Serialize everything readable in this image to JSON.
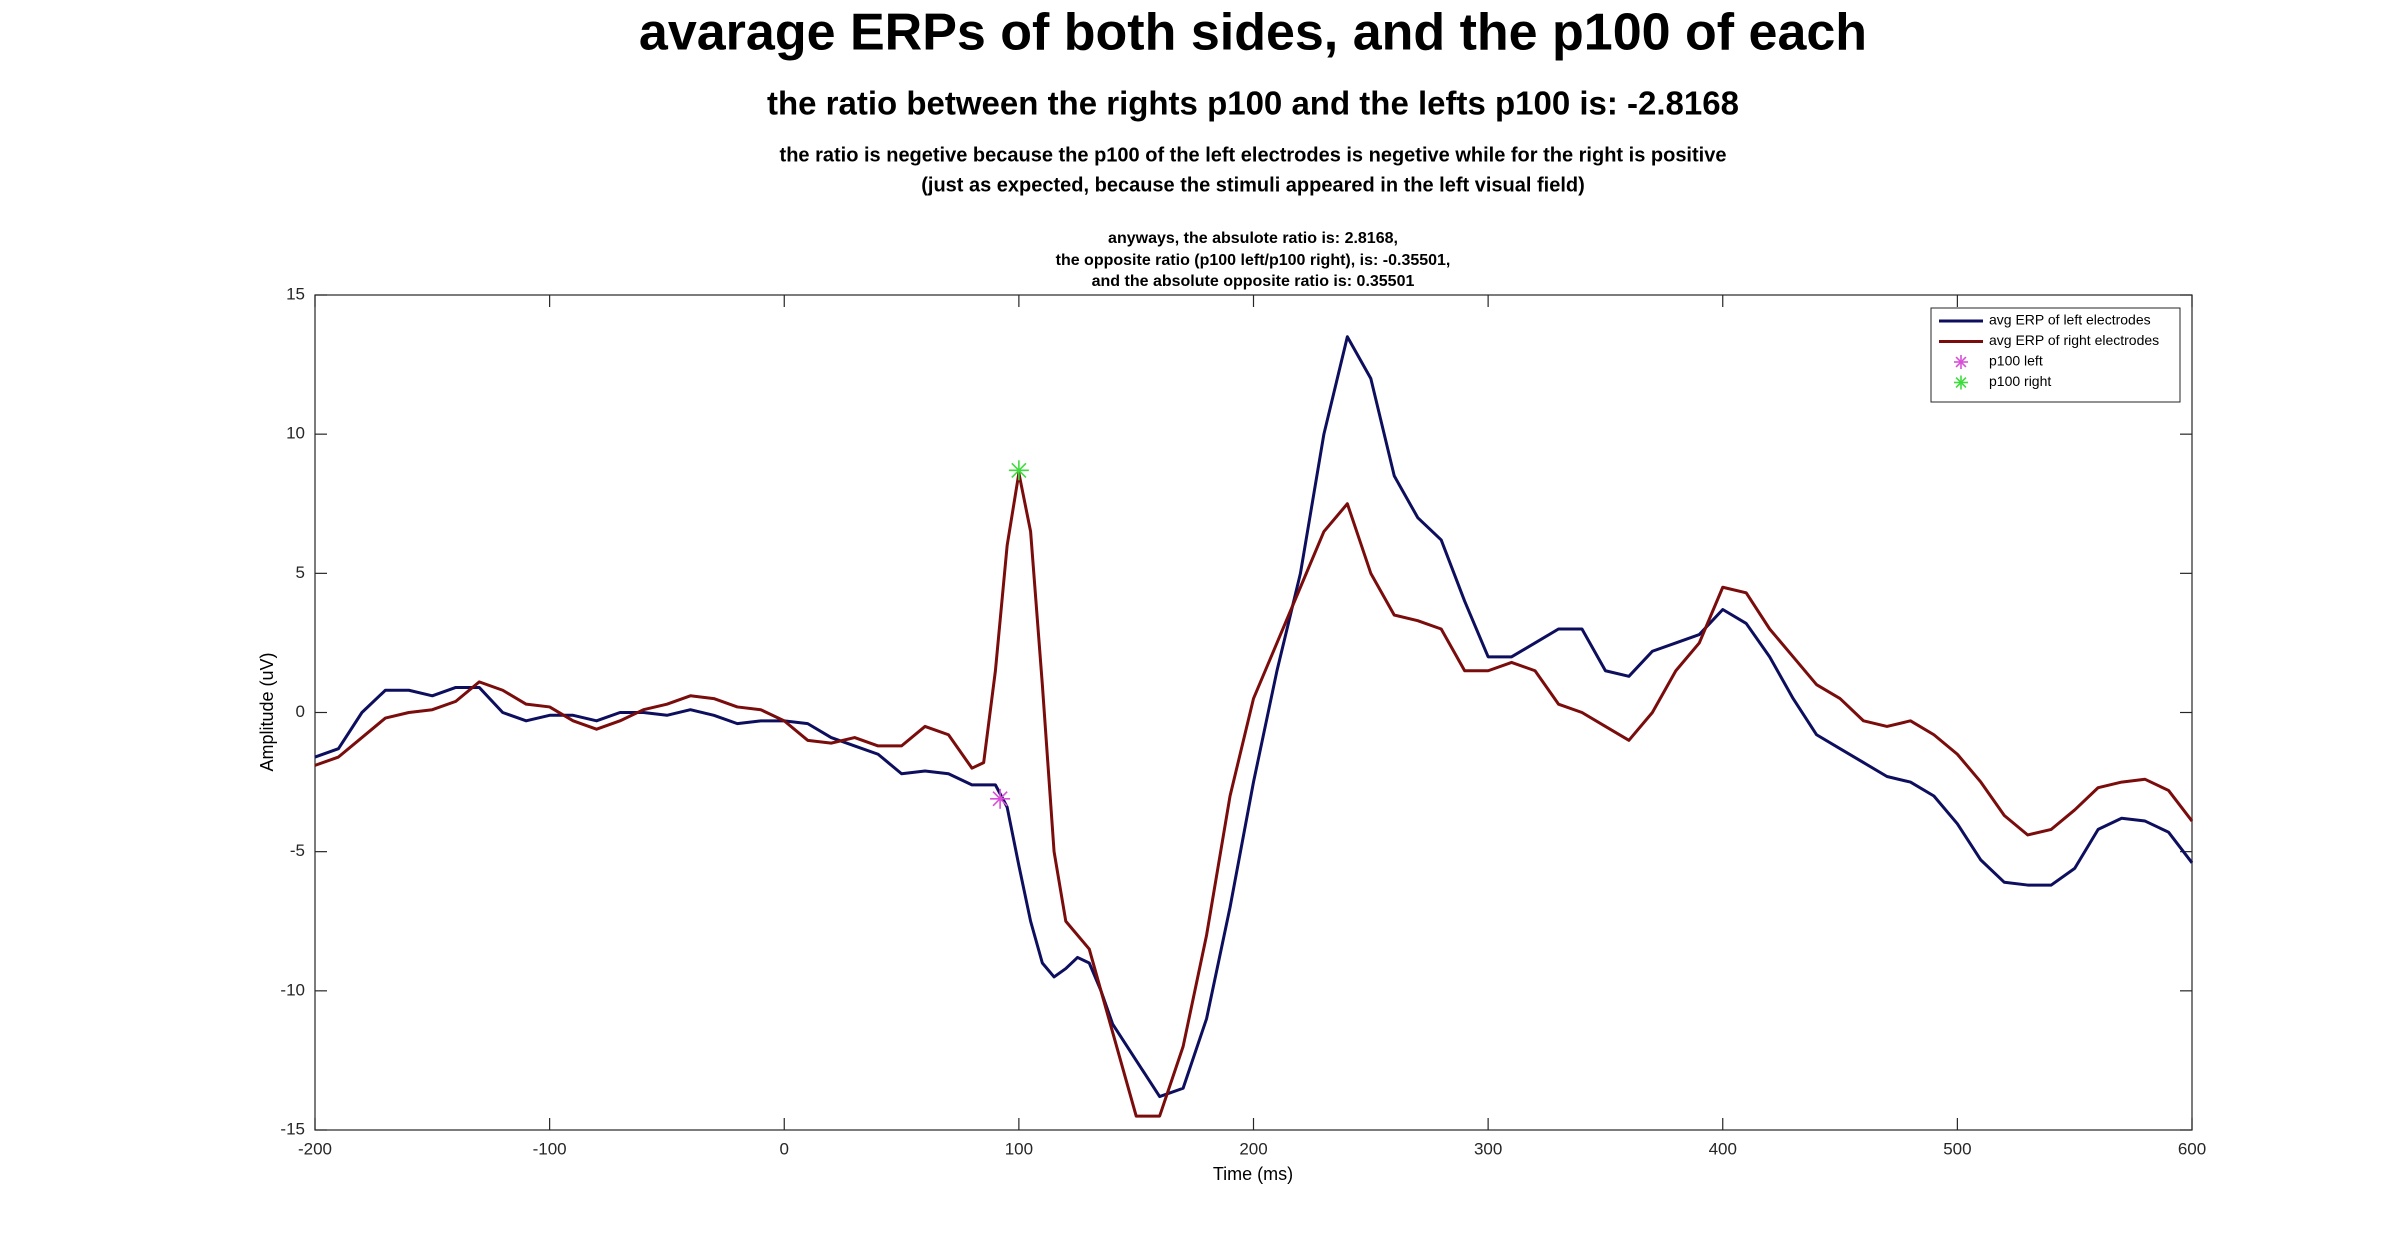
{
  "chart_data": {
    "type": "line",
    "title": "avarage ERPs of both sides, and the p100 of each",
    "subtitle": "the ratio between the rights p100 and the lefts p100 is: -2.8168",
    "notes": [
      "the ratio is negetive because the p100 of the left electrodes is negetive while for the right is positive",
      "(just as expected, because the stimuli appeared in the left visual field)"
    ],
    "annotation": [
      "anyways, the absulote ratio is: 2.8168,",
      "the opposite ratio (p100 left/p100 right), is: -0.35501,",
      "and the absolute opposite ratio is: 0.35501"
    ],
    "xlabel": "Time (ms)",
    "ylabel": "Amplitude (uV)",
    "xlim": [
      -200,
      600
    ],
    "ylim": [
      -15,
      15
    ],
    "xticks": [
      -200,
      -100,
      0,
      100,
      200,
      300,
      400,
      500,
      600
    ],
    "yticks": [
      -15,
      -10,
      -5,
      0,
      5,
      10,
      15
    ],
    "legend": "upper right",
    "series": [
      {
        "name": "avg ERP of left electrodes",
        "color": "#0d0f5e",
        "marker": "line",
        "x": [
          -200,
          -190,
          -180,
          -170,
          -160,
          -150,
          -140,
          -130,
          -120,
          -110,
          -100,
          -90,
          -80,
          -70,
          -60,
          -50,
          -40,
          -30,
          -20,
          -10,
          0,
          10,
          20,
          30,
          40,
          50,
          60,
          70,
          80,
          90,
          95,
          100,
          105,
          110,
          115,
          120,
          125,
          130,
          135,
          140,
          150,
          160,
          170,
          180,
          190,
          200,
          210,
          220,
          230,
          240,
          250,
          260,
          270,
          280,
          290,
          300,
          310,
          320,
          330,
          340,
          350,
          360,
          370,
          380,
          390,
          400,
          410,
          420,
          430,
          440,
          450,
          460,
          470,
          480,
          490,
          500,
          510,
          520,
          530,
          540,
          550,
          560,
          570,
          580,
          590,
          600
        ],
        "values": [
          -1.6,
          -1.3,
          0.0,
          0.8,
          0.8,
          0.6,
          0.9,
          0.9,
          0.0,
          -0.3,
          -0.1,
          -0.1,
          -0.3,
          0.0,
          0.0,
          -0.1,
          0.1,
          -0.1,
          -0.4,
          -0.3,
          -0.3,
          -0.4,
          -0.9,
          -1.2,
          -1.5,
          -2.2,
          -2.1,
          -2.2,
          -2.6,
          -2.6,
          -3.4,
          -5.5,
          -7.5,
          -9.0,
          -9.5,
          -9.2,
          -8.8,
          -9.0,
          -10.0,
          -11.2,
          -12.5,
          -13.8,
          -13.5,
          -11.0,
          -7.0,
          -2.5,
          1.5,
          5.0,
          10.0,
          13.5,
          12.0,
          8.5,
          7.0,
          6.2,
          4.0,
          2.0,
          2.0,
          2.5,
          3.0,
          3.0,
          1.5,
          1.3,
          2.2,
          2.5,
          2.8,
          3.7,
          3.2,
          2.0,
          0.5,
          -0.8,
          -1.3,
          -1.8,
          -2.3,
          -2.5,
          -3.0,
          -4.0,
          -5.3,
          -6.1,
          -6.2,
          -6.2,
          -5.6,
          -4.2,
          -3.8,
          -3.9,
          -4.3,
          -5.4
        ]
      },
      {
        "name": "avg ERP of right electrodes",
        "color": "#7a0c0c",
        "marker": "line",
        "x": [
          -200,
          -190,
          -180,
          -170,
          -160,
          -150,
          -140,
          -130,
          -120,
          -110,
          -100,
          -90,
          -80,
          -70,
          -60,
          -50,
          -40,
          -30,
          -20,
          -10,
          0,
          10,
          20,
          30,
          40,
          50,
          60,
          70,
          80,
          85,
          90,
          95,
          100,
          105,
          110,
          115,
          120,
          130,
          140,
          150,
          160,
          170,
          180,
          190,
          200,
          210,
          220,
          230,
          240,
          250,
          260,
          270,
          280,
          290,
          300,
          310,
          320,
          330,
          340,
          350,
          360,
          370,
          380,
          390,
          400,
          410,
          420,
          430,
          440,
          450,
          460,
          470,
          480,
          490,
          500,
          510,
          520,
          530,
          540,
          550,
          560,
          570,
          580,
          590,
          600
        ],
        "values": [
          -1.9,
          -1.6,
          -0.9,
          -0.2,
          0.0,
          0.1,
          0.4,
          1.1,
          0.8,
          0.3,
          0.2,
          -0.3,
          -0.6,
          -0.3,
          0.1,
          0.3,
          0.6,
          0.5,
          0.2,
          0.1,
          -0.3,
          -1.0,
          -1.1,
          -0.9,
          -1.2,
          -1.2,
          -0.5,
          -0.8,
          -2.0,
          -1.8,
          1.5,
          6.0,
          8.6,
          6.5,
          1.0,
          -5.0,
          -7.5,
          -8.5,
          -11.5,
          -14.5,
          -14.5,
          -12.0,
          -8.0,
          -3.0,
          0.5,
          2.5,
          4.5,
          6.5,
          7.5,
          5.0,
          3.5,
          3.3,
          3.0,
          1.5,
          1.5,
          1.8,
          1.5,
          0.3,
          0.0,
          -0.5,
          -1.0,
          0.0,
          1.5,
          2.5,
          4.5,
          4.3,
          3.0,
          2.0,
          1.0,
          0.5,
          -0.3,
          -0.5,
          -0.3,
          -0.8,
          -1.5,
          -2.5,
          -3.7,
          -4.4,
          -4.2,
          -3.5,
          -2.7,
          -2.5,
          -2.4,
          -2.8,
          -3.9
        ]
      },
      {
        "name": "p100 left",
        "color": "#d94fd9",
        "marker": "asterisk",
        "x": [
          92
        ],
        "values": [
          -3.1
        ]
      },
      {
        "name": "p100 right",
        "color": "#3ddc3d",
        "marker": "asterisk",
        "x": [
          100
        ],
        "values": [
          8.7
        ]
      }
    ]
  }
}
